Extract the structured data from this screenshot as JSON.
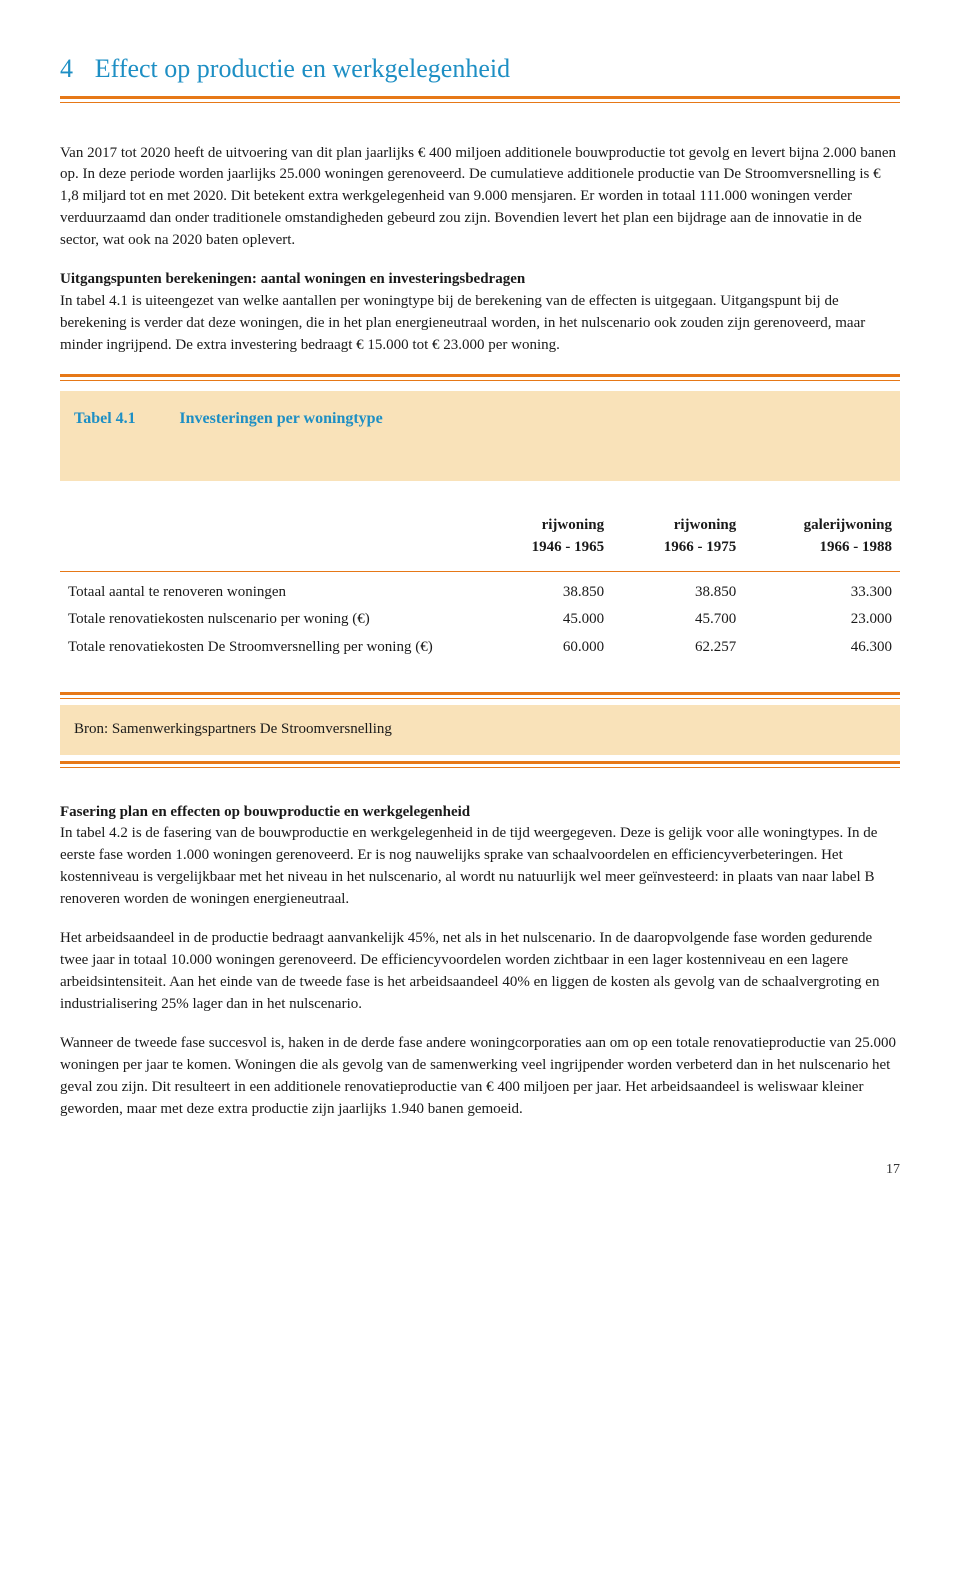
{
  "chapter": {
    "number": "4",
    "title": "Effect op productie en werkgelegenheid"
  },
  "p1": "Van 2017 tot 2020 heeft de uitvoering van dit plan jaarlijks € 400 miljoen additionele bouwproductie tot gevolg en levert bijna 2.000 banen op. In deze periode worden jaarlijks 25.000 woningen gerenoveerd. De cumulatieve additionele productie van De Stroomversnelling is € 1,8 miljard tot en met 2020. Dit betekent extra werkgelegenheid van 9.000 mensjaren. Er worden in totaal 111.000 woningen verder verduurzaamd dan onder traditionele omstandigheden gebeurd zou zijn. Bovendien levert het plan een bijdrage aan de innovatie in de sector, wat ook na 2020 baten oplevert.",
  "p2_head": "Uitgangspunten berekeningen: aantal woningen en investeringsbedragen",
  "p2": "In tabel 4.1 is uiteengezet van welke aantallen per woningtype bij de berekening van de effecten is uitgegaan. Uitgangspunt bij de berekening is verder dat deze woningen, die in het plan energieneutraal worden, in het nulscenario ook zouden zijn gerenoveerd, maar minder ingrijpend. De extra investering bedraagt € 15.000 tot € 23.000 per woning.",
  "table": {
    "label": "Tabel 4.1",
    "title": "Investeringen per woningtype",
    "columns": [
      {
        "l1": "",
        "l2": ""
      },
      {
        "l1": "rijwoning",
        "l2": "1946 - 1965"
      },
      {
        "l1": "rijwoning",
        "l2": "1966 - 1975"
      },
      {
        "l1": "galerijwoning",
        "l2": "1966 - 1988"
      }
    ],
    "rows": [
      {
        "label": "Totaal aantal te renoveren woningen",
        "c1": "38.850",
        "c2": "38.850",
        "c3": "33.300"
      },
      {
        "label": "Totale renovatiekosten nulscenario per woning (€)",
        "c1": "45.000",
        "c2": "45.700",
        "c3": "23.000"
      },
      {
        "label": "Totale renovatiekosten De Stroomversnelling per woning (€)",
        "c1": "60.000",
        "c2": "62.257",
        "c3": "46.300"
      }
    ],
    "source": "Bron: Samenwerkingspartners De Stroomversnelling"
  },
  "p3_head": "Fasering plan en effecten op bouwproductie en werkgelegenheid",
  "p3": "In tabel 4.2 is de fasering van de bouwproductie en werkgelegenheid in de tijd weergegeven. Deze is gelijk voor alle woningtypes. In de eerste fase worden 1.000 woningen gerenoveerd. Er is nog nauwelijks sprake van schaalvoordelen en efficiencyverbeteringen. Het kostenniveau is vergelijkbaar met het niveau in het nulscenario, al wordt nu natuurlijk wel meer geïnvesteerd: in plaats van naar label B renoveren worden de woningen energieneutraal.",
  "p4": "Het arbeidsaandeel in de productie bedraagt aanvankelijk 45%, net als in het nulscenario. In de daaropvolgende fase worden gedurende twee jaar in totaal 10.000 woningen gerenoveerd. De efficiencyvoordelen worden zichtbaar in een lager kostenniveau en een lagere arbeidsintensiteit. Aan het einde van de tweede fase is het arbeidsaandeel 40% en liggen de kosten als gevolg van de schaalvergroting en industrialisering 25% lager dan in het nulscenario.",
  "p5": "Wanneer de tweede fase succesvol is, haken in de derde fase andere woningcorporaties aan om op een totale renovatieproductie van 25.000 woningen per jaar te komen. Woningen die als gevolg van de samenwerking veel ingrijpender worden verbeterd dan in het nulscenario het geval zou zijn. Dit resulteert in een additionele renovatieproductie van € 400 miljoen per jaar. Het arbeidsaandeel is weliswaar kleiner geworden, maar met deze extra productie zijn jaarlijks 1.940 banen gemoeid.",
  "page_number": "17"
}
